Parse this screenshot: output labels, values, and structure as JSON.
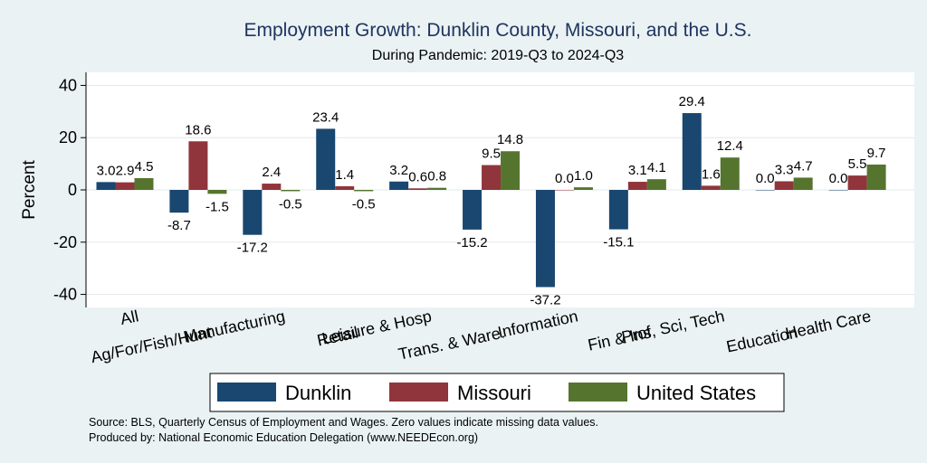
{
  "chart_data": {
    "type": "bar",
    "title": "Employment Growth: Dunklin County, Missouri, and the U.S.",
    "subtitle": "During Pandemic: 2019-Q3 to 2024-Q3",
    "ylabel": "Percent",
    "xlabel": "",
    "ylim": [
      -45,
      45
    ],
    "yticks": [
      40,
      20,
      0,
      -20,
      -40
    ],
    "grid": true,
    "legend_position": "bottom",
    "categories": [
      "All",
      "Ag/For/Fish/Hunt",
      "Manufacturing",
      "Retail",
      "Leisure & Hosp",
      "Trans. & Ware.",
      "Information",
      "Fin & Ins",
      "Prof, Sci, Tech",
      "Education",
      "Health Care"
    ],
    "series": [
      {
        "name": "Dunklin",
        "color": "#1a476f",
        "values": [
          3.0,
          -8.7,
          -17.2,
          23.4,
          3.2,
          -15.2,
          -37.2,
          -15.1,
          29.4,
          0.0,
          0.0
        ]
      },
      {
        "name": "Missouri",
        "color": "#90353b",
        "values": [
          2.9,
          18.6,
          2.4,
          1.4,
          0.6,
          9.5,
          0.0,
          3.1,
          1.6,
          3.3,
          5.5
        ]
      },
      {
        "name": "United States",
        "color": "#55752f",
        "values": [
          4.5,
          -1.5,
          -0.5,
          -0.5,
          0.8,
          14.8,
          1.0,
          4.1,
          12.4,
          4.7,
          9.7
        ]
      }
    ],
    "notes": [
      "Source: BLS, Quarterly Census of Employment and Wages. Zero values indicate missing data values.",
      "Produced by: National Economic Education Delegation (www.NEEDEcon.org)"
    ]
  }
}
